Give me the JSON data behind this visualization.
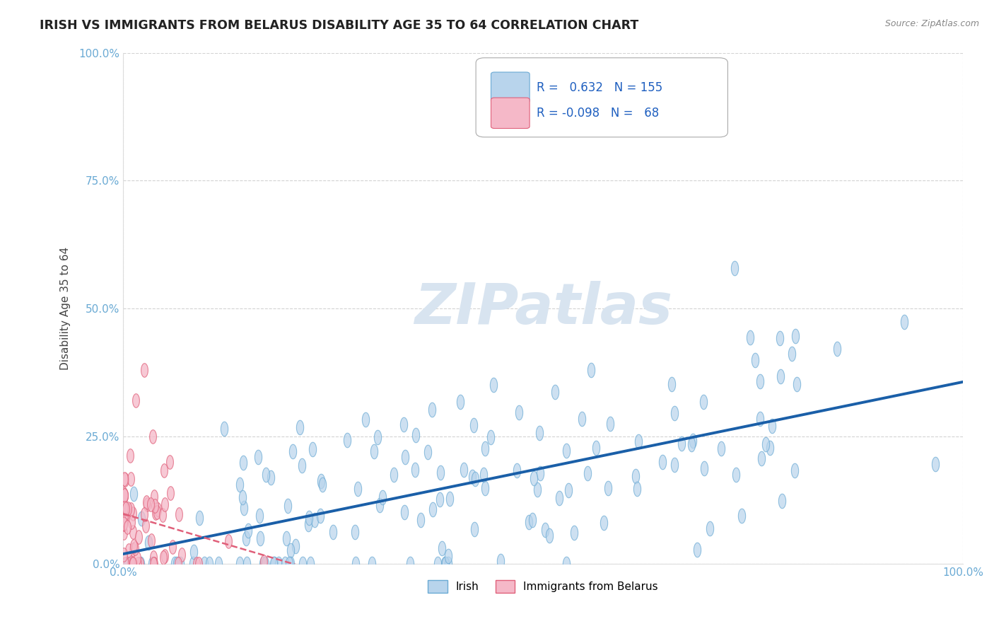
{
  "title": "IRISH VS IMMIGRANTS FROM BELARUS DISABILITY AGE 35 TO 64 CORRELATION CHART",
  "source_text": "Source: ZipAtlas.com",
  "ylabel": "Disability Age 35 to 64",
  "xlim": [
    0,
    1
  ],
  "ylim": [
    0,
    1
  ],
  "xtick_labels": [
    "0.0%",
    "100.0%"
  ],
  "ytick_labels": [
    "0.0%",
    "25.0%",
    "50.0%",
    "75.0%",
    "100.0%"
  ],
  "ytick_positions": [
    0,
    0.25,
    0.5,
    0.75,
    1.0
  ],
  "irish_R": 0.632,
  "irish_N": 155,
  "belarus_R": -0.098,
  "belarus_N": 68,
  "irish_color": "#b8d4ec",
  "irish_edge_color": "#6aaad4",
  "irish_line_color": "#1a5fa8",
  "belarus_color": "#f5b8c8",
  "belarus_edge_color": "#e0607a",
  "belarus_line_color": "#e0607a",
  "background_color": "#ffffff",
  "grid_color": "#c8c8c8",
  "watermark_color": "#d8e4f0",
  "tick_color": "#6aaad4",
  "title_color": "#222222",
  "ylabel_color": "#444444",
  "legend_text_color": "#2060c0",
  "source_color": "#888888",
  "title_fontsize": 12.5,
  "axis_label_fontsize": 11,
  "tick_fontsize": 11,
  "legend_fontsize": 12
}
